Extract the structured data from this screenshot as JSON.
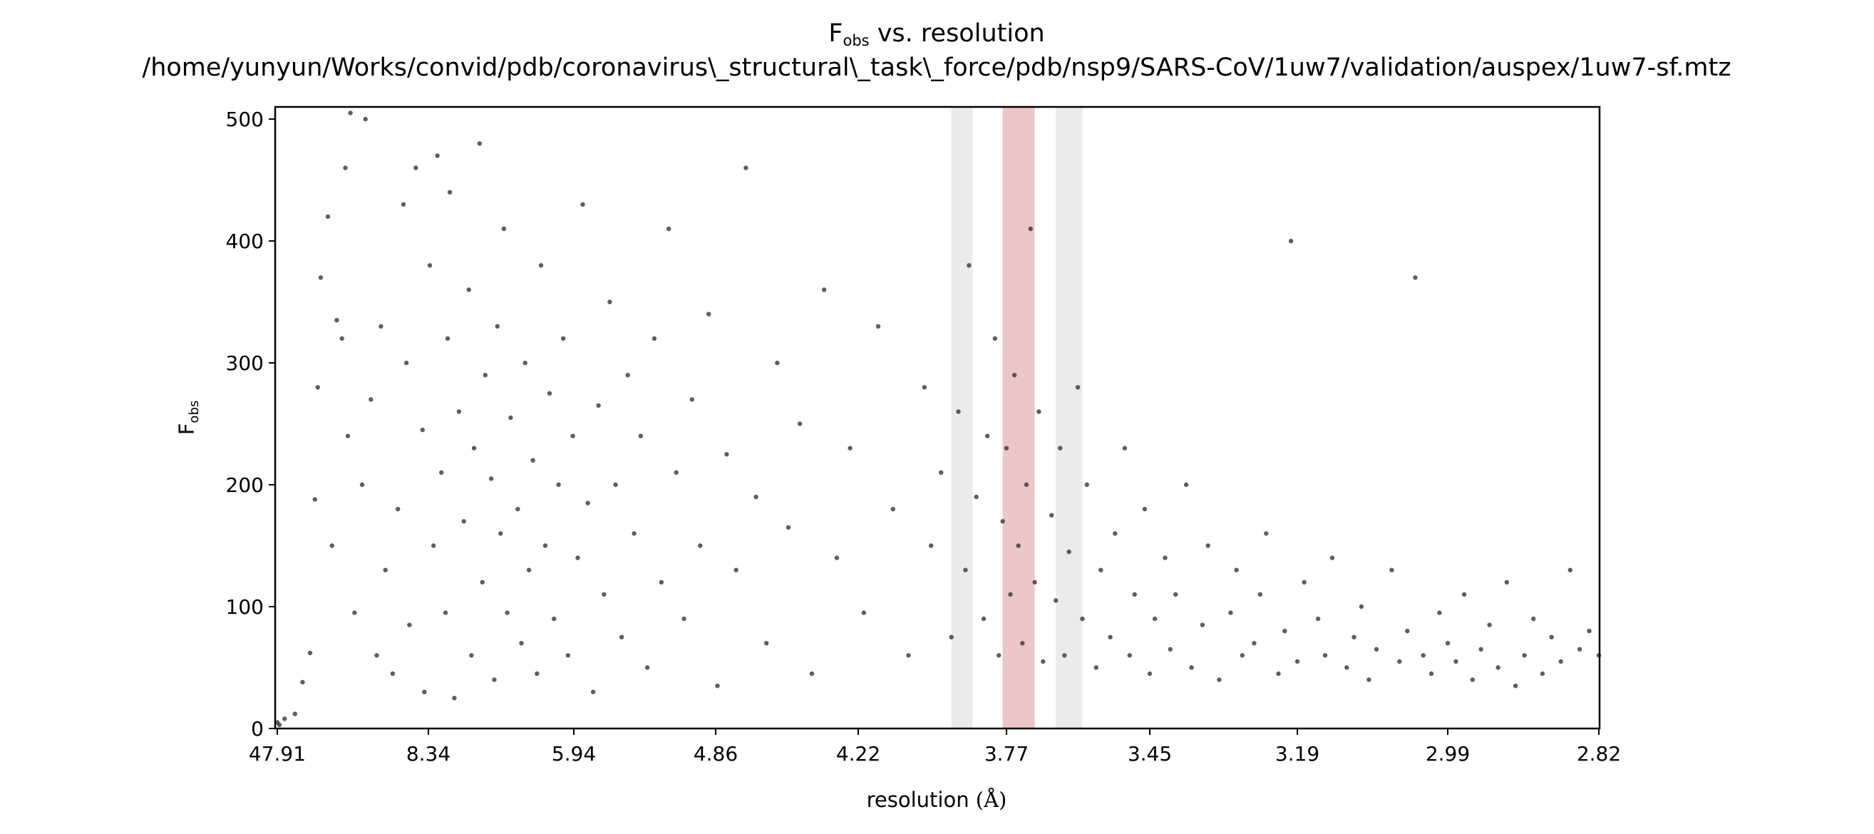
{
  "chart_data": {
    "type": "scatter",
    "title": {
      "symbol": "F",
      "symbol_sub": "obs",
      "rest": " vs. resolution"
    },
    "subtitle": "/home/yunyun/Works/convid/pdb/coronavirus\\_structural\\_task\\_force/pdb/nsp9/SARS-CoV/1uw7/validation/auspex/1uw7-sf.mtz",
    "xlabel": {
      "text": "resolution ",
      "unit": "(Å)"
    },
    "ylabel": {
      "symbol": "F",
      "symbol_sub": "obs"
    },
    "x_axis_scale": "1/d^2",
    "x_ticks": [
      "47.91",
      "8.34",
      "5.94",
      "4.86",
      "4.22",
      "3.77",
      "3.45",
      "3.19",
      "2.99",
      "2.82"
    ],
    "x_tick_resolutions": [
      47.91,
      8.34,
      5.94,
      4.86,
      4.22,
      3.77,
      3.45,
      3.19,
      2.99,
      2.82
    ],
    "xlim": [
      47.91,
      2.82
    ],
    "ylim": [
      0,
      510
    ],
    "y_ticks": [
      0,
      100,
      200,
      300,
      400,
      500
    ],
    "grid": false,
    "point_color": "#3a3a3a",
    "ice_rings": [
      {
        "from": 3.92,
        "to": 3.86,
        "color": "#ebebeb"
      },
      {
        "from": 3.78,
        "to": 3.7,
        "color": "#edc6c6"
      },
      {
        "from": 3.65,
        "to": 3.59,
        "color": "#ebebeb"
      }
    ],
    "series": [
      {
        "points": [
          [
            47.5,
            5
          ],
          [
            40.0,
            3
          ],
          [
            30.0,
            8
          ],
          [
            22.0,
            12
          ],
          [
            19.0,
            38
          ],
          [
            17.0,
            62
          ],
          [
            16.0,
            188
          ],
          [
            15.5,
            280
          ],
          [
            15.0,
            370
          ],
          [
            14.0,
            420
          ],
          [
            13.5,
            150
          ],
          [
            13.0,
            335
          ],
          [
            12.5,
            320
          ],
          [
            12.2,
            460
          ],
          [
            12.0,
            240
          ],
          [
            11.8,
            505
          ],
          [
            11.5,
            95
          ],
          [
            11.0,
            200
          ],
          [
            10.8,
            500
          ],
          [
            10.5,
            270
          ],
          [
            10.2,
            60
          ],
          [
            10.0,
            330
          ],
          [
            9.8,
            130
          ],
          [
            9.5,
            45
          ],
          [
            9.3,
            180
          ],
          [
            9.1,
            430
          ],
          [
            9.0,
            300
          ],
          [
            8.9,
            85
          ],
          [
            8.7,
            460
          ],
          [
            8.5,
            245
          ],
          [
            8.45,
            30
          ],
          [
            8.3,
            380
          ],
          [
            8.2,
            150
          ],
          [
            8.1,
            470
          ],
          [
            8.0,
            210
          ],
          [
            7.9,
            95
          ],
          [
            7.85,
            320
          ],
          [
            7.8,
            440
          ],
          [
            7.7,
            25
          ],
          [
            7.6,
            260
          ],
          [
            7.5,
            170
          ],
          [
            7.4,
            360
          ],
          [
            7.35,
            60
          ],
          [
            7.3,
            230
          ],
          [
            7.2,
            480
          ],
          [
            7.15,
            120
          ],
          [
            7.1,
            290
          ],
          [
            7.0,
            205
          ],
          [
            6.95,
            40
          ],
          [
            6.9,
            330
          ],
          [
            6.85,
            160
          ],
          [
            6.8,
            410
          ],
          [
            6.75,
            95
          ],
          [
            6.7,
            255
          ],
          [
            6.6,
            180
          ],
          [
            6.55,
            70
          ],
          [
            6.5,
            300
          ],
          [
            6.45,
            130
          ],
          [
            6.4,
            220
          ],
          [
            6.35,
            45
          ],
          [
            6.3,
            380
          ],
          [
            6.25,
            150
          ],
          [
            6.2,
            275
          ],
          [
            6.15,
            90
          ],
          [
            6.1,
            200
          ],
          [
            6.05,
            320
          ],
          [
            6.0,
            60
          ],
          [
            5.95,
            240
          ],
          [
            5.9,
            140
          ],
          [
            5.85,
            430
          ],
          [
            5.8,
            185
          ],
          [
            5.75,
            30
          ],
          [
            5.7,
            265
          ],
          [
            5.65,
            110
          ],
          [
            5.6,
            350
          ],
          [
            5.55,
            200
          ],
          [
            5.5,
            75
          ],
          [
            5.45,
            290
          ],
          [
            5.4,
            160
          ],
          [
            5.35,
            240
          ],
          [
            5.3,
            50
          ],
          [
            5.25,
            320
          ],
          [
            5.2,
            120
          ],
          [
            5.15,
            410
          ],
          [
            5.1,
            210
          ],
          [
            5.05,
            90
          ],
          [
            5.0,
            270
          ],
          [
            4.95,
            150
          ],
          [
            4.9,
            340
          ],
          [
            4.85,
            35
          ],
          [
            4.8,
            225
          ],
          [
            4.75,
            130
          ],
          [
            4.7,
            460
          ],
          [
            4.65,
            190
          ],
          [
            4.6,
            70
          ],
          [
            4.55,
            300
          ],
          [
            4.5,
            165
          ],
          [
            4.45,
            250
          ],
          [
            4.4,
            45
          ],
          [
            4.35,
            360
          ],
          [
            4.3,
            140
          ],
          [
            4.25,
            230
          ],
          [
            4.2,
            95
          ],
          [
            4.15,
            330
          ],
          [
            4.1,
            180
          ],
          [
            4.05,
            60
          ],
          [
            4.0,
            280
          ],
          [
            3.98,
            150
          ],
          [
            3.95,
            210
          ],
          [
            3.92,
            75
          ],
          [
            3.9,
            260
          ],
          [
            3.88,
            130
          ],
          [
            3.87,
            380
          ],
          [
            3.85,
            190
          ],
          [
            3.83,
            90
          ],
          [
            3.82,
            240
          ],
          [
            3.8,
            320
          ],
          [
            3.79,
            60
          ],
          [
            3.78,
            170
          ],
          [
            3.77,
            230
          ],
          [
            3.76,
            110
          ],
          [
            3.75,
            290
          ],
          [
            3.74,
            150
          ],
          [
            3.73,
            70
          ],
          [
            3.72,
            200
          ],
          [
            3.71,
            410
          ],
          [
            3.7,
            120
          ],
          [
            3.69,
            260
          ],
          [
            3.68,
            55
          ],
          [
            3.66,
            175
          ],
          [
            3.65,
            105
          ],
          [
            3.64,
            230
          ],
          [
            3.63,
            60
          ],
          [
            3.62,
            145
          ],
          [
            3.6,
            280
          ],
          [
            3.59,
            90
          ],
          [
            3.58,
            200
          ],
          [
            3.56,
            50
          ],
          [
            3.55,
            130
          ],
          [
            3.53,
            75
          ],
          [
            3.52,
            160
          ],
          [
            3.5,
            230
          ],
          [
            3.49,
            60
          ],
          [
            3.48,
            110
          ],
          [
            3.46,
            180
          ],
          [
            3.45,
            45
          ],
          [
            3.44,
            90
          ],
          [
            3.42,
            140
          ],
          [
            3.41,
            65
          ],
          [
            3.4,
            110
          ],
          [
            3.38,
            200
          ],
          [
            3.37,
            50
          ],
          [
            3.35,
            85
          ],
          [
            3.34,
            150
          ],
          [
            3.32,
            40
          ],
          [
            3.3,
            95
          ],
          [
            3.29,
            130
          ],
          [
            3.28,
            60
          ],
          [
            3.26,
            70
          ],
          [
            3.25,
            110
          ],
          [
            3.24,
            160
          ],
          [
            3.22,
            45
          ],
          [
            3.21,
            80
          ],
          [
            3.2,
            400
          ],
          [
            3.19,
            55
          ],
          [
            3.18,
            120
          ],
          [
            3.16,
            90
          ],
          [
            3.15,
            60
          ],
          [
            3.14,
            140
          ],
          [
            3.12,
            50
          ],
          [
            3.11,
            75
          ],
          [
            3.1,
            100
          ],
          [
            3.09,
            40
          ],
          [
            3.08,
            65
          ],
          [
            3.06,
            130
          ],
          [
            3.05,
            55
          ],
          [
            3.04,
            80
          ],
          [
            3.03,
            370
          ],
          [
            3.02,
            60
          ],
          [
            3.01,
            45
          ],
          [
            3.0,
            95
          ],
          [
            2.99,
            70
          ],
          [
            2.98,
            55
          ],
          [
            2.97,
            110
          ],
          [
            2.96,
            40
          ],
          [
            2.95,
            65
          ],
          [
            2.94,
            85
          ],
          [
            2.93,
            50
          ],
          [
            2.92,
            120
          ],
          [
            2.91,
            35
          ],
          [
            2.9,
            60
          ],
          [
            2.89,
            90
          ],
          [
            2.88,
            45
          ],
          [
            2.87,
            75
          ],
          [
            2.86,
            55
          ],
          [
            2.85,
            130
          ],
          [
            2.84,
            65
          ],
          [
            2.83,
            80
          ],
          [
            2.82,
            60
          ]
        ]
      }
    ]
  }
}
